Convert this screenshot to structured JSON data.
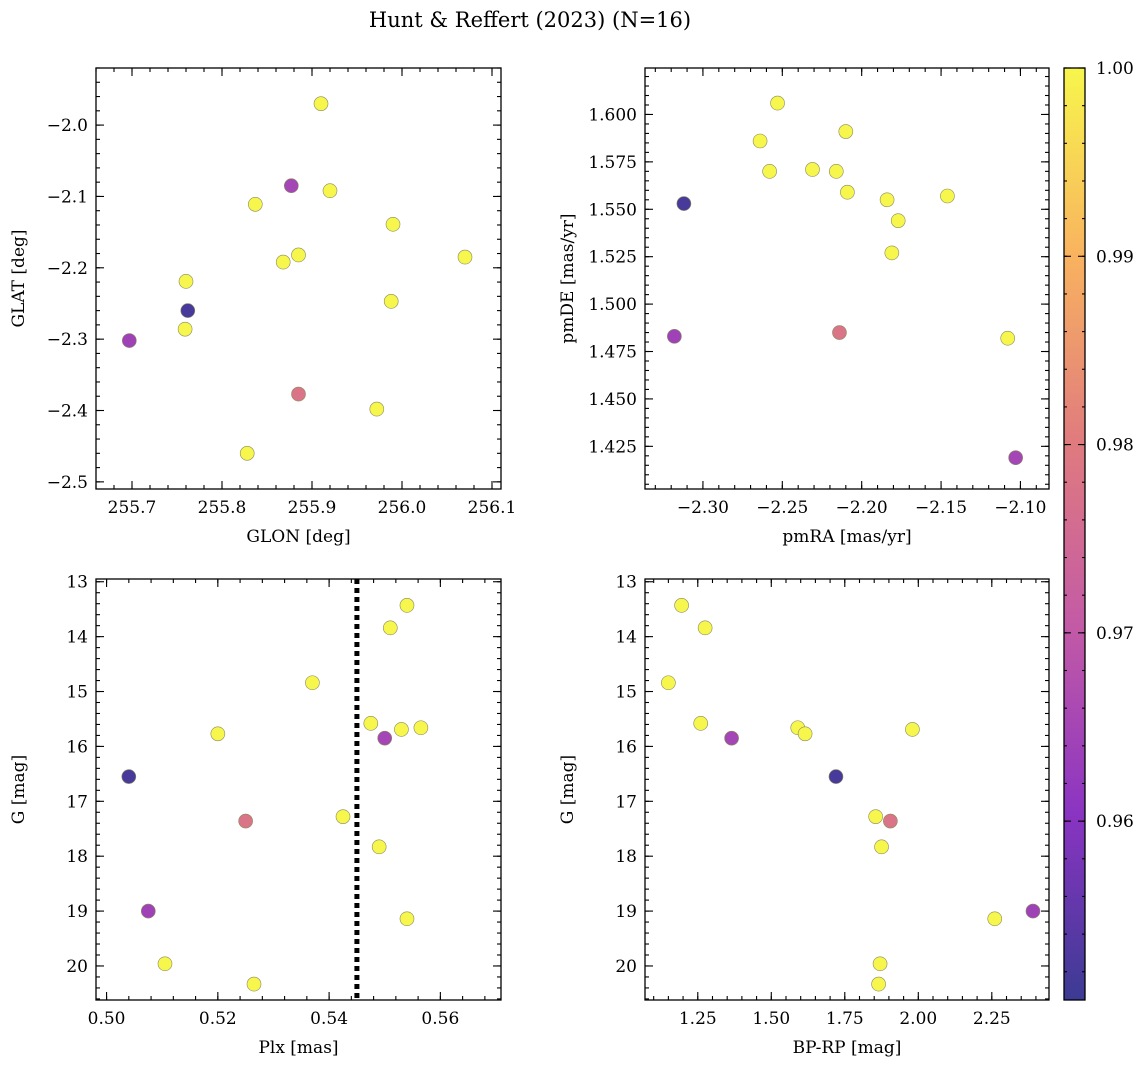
{
  "title": "Hunt & Reffert (2023) (N=16)",
  "colors": {
    "low": "#3b3a92",
    "mid": "#e07b7e",
    "high": "#f2f24b"
  },
  "chart_data": [
    {
      "type": "scatter",
      "id": "glon-glat",
      "xlabel": "GLON [deg]",
      "ylabel": "GLAT [deg]",
      "xlim": [
        255.66,
        256.11
      ],
      "ylim": [
        -2.51,
        -1.92
      ],
      "yinvert": false,
      "xticks": [
        255.7,
        255.8,
        255.9,
        256.0,
        256.1
      ],
      "xticklabels": [
        "255.7",
        "255.8",
        "255.9",
        "256.0",
        "256.1"
      ],
      "yticks": [
        -2.0,
        -2.1,
        -2.2,
        -2.3,
        -2.4,
        -2.5
      ],
      "yticklabels": [
        "−2.0",
        "−2.1",
        "−2.2",
        "−2.3",
        "−2.4",
        "−2.5"
      ],
      "x": [
        255.91,
        255.877,
        255.92,
        255.837,
        255.99,
        255.868,
        255.885,
        256.07,
        255.76,
        255.762,
        255.759,
        255.697,
        255.885,
        255.972,
        255.828,
        255.988
      ],
      "y": [
        -1.97,
        -2.085,
        -2.092,
        -2.111,
        -2.139,
        -2.192,
        -2.182,
        -2.185,
        -2.219,
        -2.26,
        -2.286,
        -2.302,
        -2.377,
        -2.398,
        -2.46,
        -2.247
      ],
      "color_values": [
        1.0,
        0.965,
        1.0,
        1.0,
        1.0,
        1.0,
        1.0,
        1.0,
        1.0,
        0.952,
        1.0,
        0.964,
        0.978,
        1.0,
        1.0,
        1.0
      ]
    },
    {
      "type": "scatter",
      "id": "pmra-pmde",
      "xlabel": "pmRA [mas/yr]",
      "ylabel": "pmDE [mas/yr]",
      "xlim": [
        -2.3365,
        -2.082
      ],
      "ylim": [
        1.4025,
        1.6245
      ],
      "yinvert": false,
      "xticks": [
        -2.3,
        -2.25,
        -2.2,
        -2.15,
        -2.1
      ],
      "xticklabels": [
        "−2.30",
        "−2.25",
        "−2.20",
        "−2.15",
        "−2.10"
      ],
      "yticks": [
        1.425,
        1.45,
        1.475,
        1.5,
        1.525,
        1.55,
        1.575,
        1.6
      ],
      "yticklabels": [
        "1.425",
        "1.450",
        "1.475",
        "1.500",
        "1.525",
        "1.550",
        "1.575",
        "1.600"
      ],
      "x": [
        -2.253,
        -2.264,
        -2.258,
        -2.231,
        -2.216,
        -2.21,
        -2.209,
        -2.184,
        -2.177,
        -2.181,
        -2.146,
        -2.312,
        -2.318,
        -2.214,
        -2.108,
        -2.103
      ],
      "y": [
        1.606,
        1.586,
        1.57,
        1.571,
        1.57,
        1.591,
        1.559,
        1.555,
        1.544,
        1.527,
        1.557,
        1.553,
        1.483,
        1.485,
        1.482,
        1.419
      ],
      "color_values": [
        1.0,
        1.0,
        1.0,
        1.0,
        1.0,
        1.0,
        1.0,
        1.0,
        1.0,
        1.0,
        1.0,
        0.952,
        0.964,
        0.978,
        1.0,
        0.965
      ]
    },
    {
      "type": "scatter",
      "id": "plx-g",
      "xlabel": "Plx [mas]",
      "ylabel": "G [mag]",
      "xlim": [
        0.4981,
        0.5709
      ],
      "ylim": [
        12.95,
        20.62
      ],
      "yinvert": true,
      "xticks": [
        0.5,
        0.52,
        0.54,
        0.56
      ],
      "xticklabels": [
        "0.50",
        "0.52",
        "0.54",
        "0.56"
      ],
      "yticks": [
        13,
        14,
        15,
        16,
        17,
        18,
        19,
        20
      ],
      "yticklabels": [
        "13",
        "14",
        "15",
        "16",
        "17",
        "18",
        "19",
        "20"
      ],
      "vline": 0.545,
      "x": [
        0.554,
        0.551,
        0.537,
        0.5475,
        0.5565,
        0.553,
        0.52,
        0.55,
        0.504,
        0.525,
        0.5425,
        0.549,
        0.5075,
        0.554,
        0.5105,
        0.5265
      ],
      "y": [
        13.43,
        13.84,
        14.84,
        15.58,
        15.66,
        15.69,
        15.77,
        15.85,
        16.55,
        17.36,
        17.28,
        17.83,
        19.0,
        19.14,
        19.96,
        20.33
      ],
      "color_values": [
        1.0,
        1.0,
        1.0,
        1.0,
        1.0,
        1.0,
        1.0,
        0.965,
        0.952,
        0.978,
        1.0,
        1.0,
        0.964,
        1.0,
        1.0,
        1.0
      ]
    },
    {
      "type": "scatter",
      "id": "bprp-g",
      "xlabel": "BP-RP [mag]",
      "ylabel": "G [mag]",
      "xlim": [
        1.0705,
        2.4445
      ],
      "ylim": [
        12.95,
        20.62
      ],
      "yinvert": true,
      "xticks": [
        1.25,
        1.5,
        1.75,
        2.0,
        2.25
      ],
      "xticklabels": [
        "1.25",
        "1.50",
        "1.75",
        "2.00",
        "2.25"
      ],
      "yticks": [
        13,
        14,
        15,
        16,
        17,
        18,
        19,
        20
      ],
      "yticklabels": [
        "13",
        "14",
        "15",
        "16",
        "17",
        "18",
        "19",
        "20"
      ],
      "x": [
        1.195,
        1.275,
        1.15,
        1.26,
        1.59,
        1.615,
        1.98,
        1.365,
        1.72,
        1.905,
        1.855,
        1.875,
        2.39,
        2.26,
        1.87,
        1.865
      ],
      "y": [
        13.43,
        13.84,
        14.84,
        15.58,
        15.66,
        15.77,
        15.69,
        15.85,
        16.55,
        17.36,
        17.28,
        17.83,
        19.0,
        19.14,
        19.96,
        20.33
      ],
      "color_values": [
        1.0,
        1.0,
        1.0,
        1.0,
        1.0,
        1.0,
        1.0,
        0.965,
        0.952,
        0.978,
        1.0,
        1.0,
        0.964,
        1.0,
        1.0,
        1.0
      ]
    }
  ],
  "colorbar": {
    "min": 0.9505,
    "max": 1.0,
    "ticks": [
      0.96,
      0.97,
      0.98,
      0.99,
      1.0
    ],
    "ticklabels": [
      "0.96",
      "0.97",
      "0.98",
      "0.99",
      "1.00"
    ]
  }
}
